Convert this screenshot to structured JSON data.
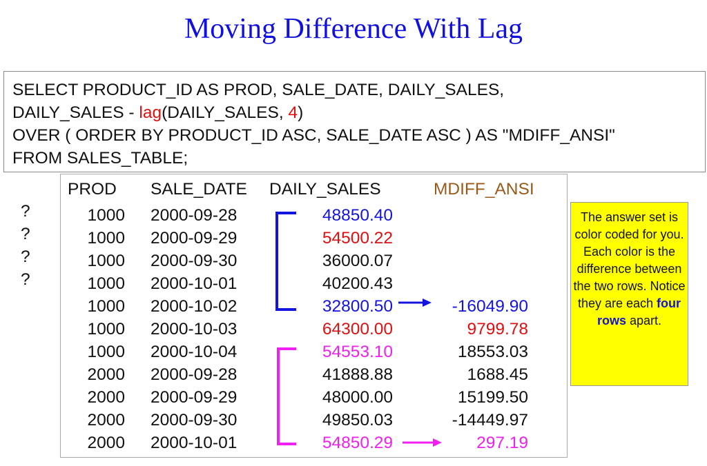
{
  "title": "Moving Difference With Lag",
  "sql": {
    "line1": "SELECT PRODUCT_ID AS PROD, SALE_DATE, DAILY_SALES,",
    "line2_pre": "DAILY_SALES - ",
    "line2_fn": "lag",
    "line2_mid": "(DAILY_SALES, ",
    "line2_num": "4",
    "line2_post": ")",
    "line3": "OVER ( ORDER BY PRODUCT_ID ASC, SALE_DATE ASC ) AS \"MDIFF_ANSI\"",
    "line4": "FROM SALES_TABLE;"
  },
  "table": {
    "columns": [
      "PROD",
      "SALE_DATE",
      "DAILY_SALES",
      "MDIFF_ANSI"
    ],
    "rows": [
      {
        "prod": "1000",
        "date": "2000-09-28",
        "sales": "48850.40",
        "mdiff": "?",
        "sales_color": "#1414e0",
        "mdiff_color": "#111111"
      },
      {
        "prod": "1000",
        "date": "2000-09-29",
        "sales": "54500.22",
        "mdiff": "?",
        "sales_color": "#e01010",
        "mdiff_color": "#111111"
      },
      {
        "prod": "1000",
        "date": "2000-09-30",
        "sales": "36000.07",
        "mdiff": "?",
        "sales_color": "#111111",
        "mdiff_color": "#111111"
      },
      {
        "prod": "1000",
        "date": "2000-10-01",
        "sales": "40200.43",
        "mdiff": "?",
        "sales_color": "#111111",
        "mdiff_color": "#111111"
      },
      {
        "prod": "1000",
        "date": "2000-10-02",
        "sales": "32800.50",
        "mdiff": "-16049.90",
        "sales_color": "#1414e0",
        "mdiff_color": "#1414e0"
      },
      {
        "prod": "1000",
        "date": "2000-10-03",
        "sales": "64300.00",
        "mdiff": "9799.78",
        "sales_color": "#e01010",
        "mdiff_color": "#e01010"
      },
      {
        "prod": "1000",
        "date": "2000-10-04",
        "sales": "54553.10",
        "mdiff": "18553.03",
        "sales_color": "#f020f0",
        "mdiff_color": "#111111"
      },
      {
        "prod": "2000",
        "date": "2000-09-28",
        "sales": "41888.88",
        "mdiff": "1688.45",
        "sales_color": "#111111",
        "mdiff_color": "#111111"
      },
      {
        "prod": "2000",
        "date": "2000-09-29",
        "sales": "48000.00",
        "mdiff": "15199.50",
        "sales_color": "#111111",
        "mdiff_color": "#111111"
      },
      {
        "prod": "2000",
        "date": "2000-09-30",
        "sales": "49850.03",
        "mdiff": "-14449.97",
        "sales_color": "#111111",
        "mdiff_color": "#111111"
      },
      {
        "prod": "2000",
        "date": "2000-10-01",
        "sales": "54850.29",
        "mdiff": "297.19",
        "sales_color": "#f020f0",
        "mdiff_color": "#f020f0"
      }
    ]
  },
  "note": {
    "text_pre": "The answer set is color coded for you.  Each color is the difference between the two rows. Notice they are each ",
    "text_bold": "four rows",
    "text_post": " apart."
  },
  "colors": {
    "blue_bracket": "#1414e0",
    "magenta_bracket": "#f020f0",
    "title": "#1010e0",
    "header_mdiff": "#9b5a1a",
    "note_bg": "#ffff00"
  }
}
